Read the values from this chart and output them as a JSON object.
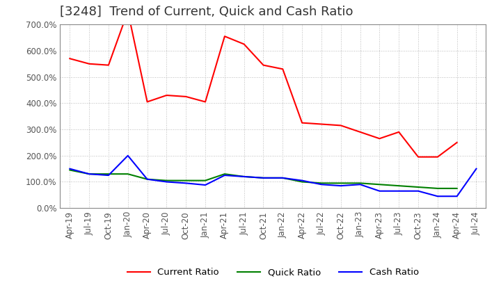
{
  "title": "[3248]  Trend of Current, Quick and Cash Ratio",
  "x_labels": [
    "Apr-19",
    "Jul-19",
    "Oct-19",
    "Jan-20",
    "Apr-20",
    "Jul-20",
    "Oct-20",
    "Jan-21",
    "Apr-21",
    "Jul-21",
    "Oct-21",
    "Jan-22",
    "Apr-22",
    "Jul-22",
    "Oct-22",
    "Jan-23",
    "Apr-23",
    "Jul-23",
    "Oct-23",
    "Jan-24",
    "Apr-24",
    "Jul-24"
  ],
  "current_ratio": [
    570,
    550,
    545,
    750,
    405,
    430,
    425,
    405,
    655,
    625,
    545,
    530,
    325,
    320,
    315,
    290,
    265,
    290,
    195,
    195,
    250,
    null
  ],
  "quick_ratio": [
    145,
    130,
    130,
    130,
    110,
    105,
    105,
    105,
    130,
    120,
    115,
    115,
    100,
    95,
    95,
    95,
    90,
    85,
    80,
    75,
    75,
    null
  ],
  "cash_ratio": [
    150,
    130,
    125,
    200,
    110,
    100,
    95,
    88,
    125,
    120,
    115,
    115,
    105,
    90,
    85,
    90,
    65,
    65,
    65,
    45,
    45,
    150
  ],
  "current_color": "#ff0000",
  "quick_color": "#008000",
  "cash_color": "#0000ff",
  "background_color": "#ffffff",
  "grid_color": "#bbbbbb",
  "ylim": [
    0,
    700
  ],
  "ytick_step": 100,
  "title_fontsize": 13,
  "label_fontsize": 8.5
}
